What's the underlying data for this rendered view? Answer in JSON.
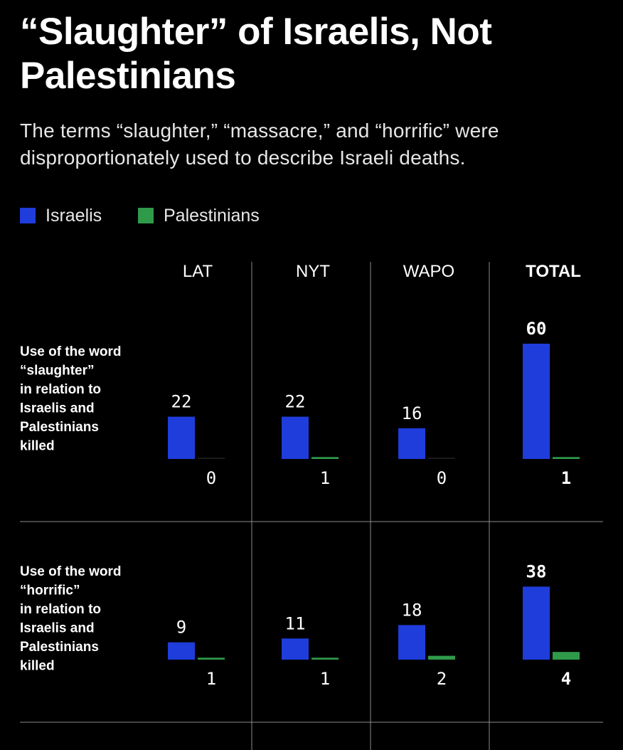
{
  "title": "“Slaughter” of Israelis, Not Palestinians",
  "subtitle": "The terms “slaughter,” “massacre,” and “horrific” were disproportionately used to describe Israeli deaths.",
  "legend": [
    {
      "label": "Israelis",
      "color": "#1f3ddb"
    },
    {
      "label": "Palestinians",
      "color": "#2f9a4a"
    }
  ],
  "chart_data": {
    "type": "bar",
    "columns": [
      "LAT",
      "NYT",
      "WAPO",
      "TOTAL"
    ],
    "series_colors": {
      "israelis": "#1f3ddb",
      "palestinians": "#2f9a4a"
    },
    "grid": true,
    "rows": [
      {
        "label": [
          "Use of the word",
          "“slaughter”",
          "in relation to",
          "Israelis and",
          "Palestinians",
          "killed"
        ],
        "israelis": [
          22,
          22,
          16,
          60
        ],
        "palestinians": [
          0,
          1,
          0,
          1
        ]
      },
      {
        "label": [
          "Use of the word",
          "“horrific”",
          "in relation to",
          "Israelis and",
          "Palestinians",
          "killed"
        ],
        "israelis": [
          9,
          11,
          18,
          38
        ],
        "palestinians": [
          1,
          1,
          2,
          4
        ]
      }
    ]
  }
}
